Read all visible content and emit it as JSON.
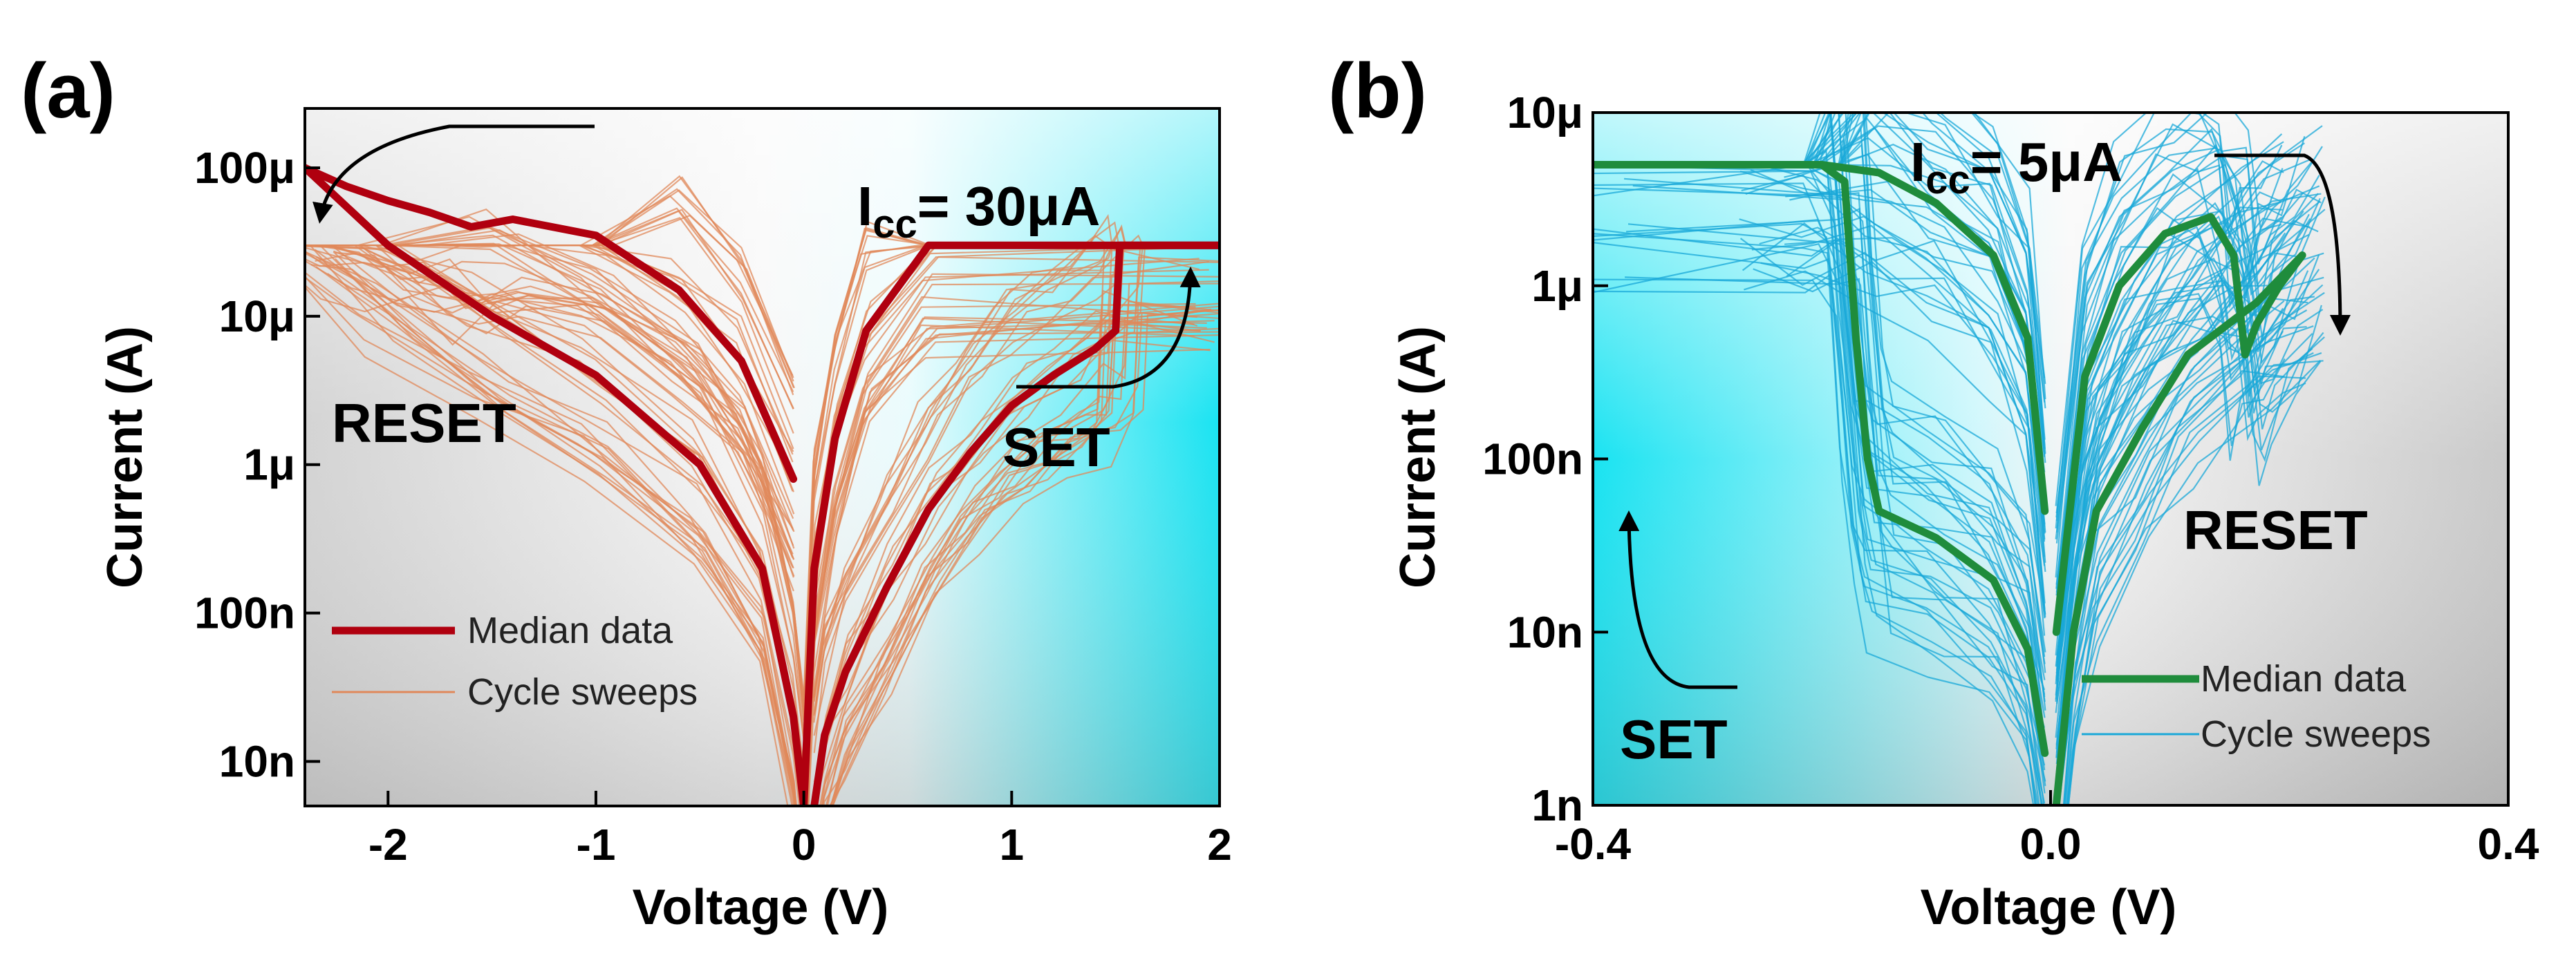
{
  "figure": {
    "panels": [
      {
        "label": "(a)",
        "compliance_main": "I",
        "compliance_sub": "cc",
        "compliance_value": "= 30μA",
        "left_annotation": "RESET",
        "right_annotation": "SET",
        "colors": {
          "median": "#b0000f",
          "sweeps": "#e0885a",
          "bg_left": "#bdbdbd",
          "bg_right": "#00dff0"
        }
      },
      {
        "label": "(b)",
        "compliance_main": "I",
        "compliance_sub": "cc",
        "compliance_value": "= 5μA",
        "left_annotation": "SET",
        "right_annotation": "RESET",
        "colors": {
          "median": "#1f8c3c",
          "sweeps": "#1aa8d8",
          "bg_left": "#00dff0",
          "bg_right": "#bdbdbd"
        }
      }
    ]
  },
  "chart_data": [
    {
      "type": "line",
      "title": "(a)",
      "xlabel": "Voltage (V)",
      "ylabel": "Current (A)",
      "xlim": [
        -2.4,
        2.0
      ],
      "ylim_log10": [
        -8.3,
        -3.6
      ],
      "yscale": "log",
      "x_ticks": [
        -2,
        -1,
        0,
        1,
        2
      ],
      "x_tick_labels": [
        "-2",
        "-1",
        "0",
        "1",
        "2"
      ],
      "y_ticks_log10": [
        -8,
        -7,
        -6,
        -5,
        -4
      ],
      "y_tick_labels": [
        "10n",
        "100n",
        "1μ",
        "10μ",
        "100μ"
      ],
      "compliance_current": 3e-05,
      "legend": [
        "Median data",
        "Cycle sweeps"
      ],
      "series": [
        {
          "name": "Median data",
          "segments": [
            {
              "x": [
                0.05,
                0.1,
                0.2,
                0.4,
                0.6,
                0.8,
                1.0,
                1.2,
                1.4,
                1.5,
                1.52,
                2.0
              ],
              "y": [
                5e-09,
                1.5e-08,
                4e-08,
                1.5e-07,
                5e-07,
                1.2e-06,
                2.5e-06,
                4e-06,
                6e-06,
                8e-06,
                3e-05,
                3e-05
              ]
            },
            {
              "x": [
                2.0,
                0.6,
                0.3,
                0.15,
                0.05,
                0.0
              ],
              "y": [
                3e-05,
                3e-05,
                8e-06,
                1.5e-06,
                2e-07,
                5e-09
              ]
            },
            {
              "x": [
                -0.05,
                -0.3,
                -0.6,
                -1.0,
                -1.4,
                -1.6,
                -1.8,
                -2.0,
                -2.2,
                -2.4
              ],
              "y": [
                8e-07,
                5e-06,
                1.5e-05,
                3.5e-05,
                4.5e-05,
                4e-05,
                5e-05,
                6e-05,
                7.5e-05,
                0.0001
              ]
            },
            {
              "x": [
                -2.4,
                -2.0,
                -1.5,
                -1.0,
                -0.5,
                -0.2,
                -0.05,
                0.0
              ],
              "y": [
                0.0001,
                3e-05,
                1e-05,
                4e-06,
                1e-06,
                2e-07,
                2e-08,
                5e-09
              ]
            }
          ]
        }
      ]
    },
    {
      "type": "line",
      "title": "(b)",
      "xlabel": "Voltage (V)",
      "ylabel": "Current (A)",
      "xlim": [
        -0.4,
        0.4
      ],
      "ylim_log10": [
        -9,
        -5
      ],
      "yscale": "log",
      "x_ticks": [
        -0.4,
        0.0,
        0.4
      ],
      "x_tick_labels": [
        "-0.4",
        "0.0",
        "0.4"
      ],
      "y_ticks_log10": [
        -9,
        -8,
        -7,
        -6,
        -5
      ],
      "y_tick_labels": [
        "1n",
        "10n",
        "100n",
        "1μ",
        "10μ"
      ],
      "compliance_current": 5e-06,
      "legend": [
        "Median data",
        "Cycle sweeps"
      ],
      "series": [
        {
          "name": "Median data",
          "segments": [
            {
              "x": [
                -0.4,
                -0.2,
                -0.18,
                -0.17,
                -0.16,
                -0.15,
                -0.1,
                -0.05,
                -0.02,
                -0.005
              ],
              "y": [
                5e-06,
                5e-06,
                4e-06,
                5e-07,
                1e-07,
                5e-08,
                3.5e-08,
                2e-08,
                8e-09,
                2e-09
              ]
            },
            {
              "x": [
                -0.005,
                -0.02,
                -0.05,
                -0.1,
                -0.15,
                -0.2,
                -0.25
              ],
              "y": [
                5e-08,
                5e-07,
                1.5e-06,
                3e-06,
                4.5e-06,
                5e-06,
                5e-06
              ]
            },
            {
              "x": [
                0.005,
                0.03,
                0.06,
                0.1,
                0.14,
                0.16,
                0.17,
                0.18,
                0.2,
                0.22
              ],
              "y": [
                1e-08,
                3e-07,
                1e-06,
                2e-06,
                2.5e-06,
                1.5e-06,
                4e-07,
                6e-07,
                1e-06,
                1.5e-06
              ]
            },
            {
              "x": [
                0.22,
                0.18,
                0.12,
                0.08,
                0.04,
                0.02,
                0.005
              ],
              "y": [
                1.5e-06,
                8e-07,
                4e-07,
                1.5e-07,
                5e-08,
                1e-08,
                1e-09
              ]
            }
          ]
        }
      ]
    }
  ]
}
